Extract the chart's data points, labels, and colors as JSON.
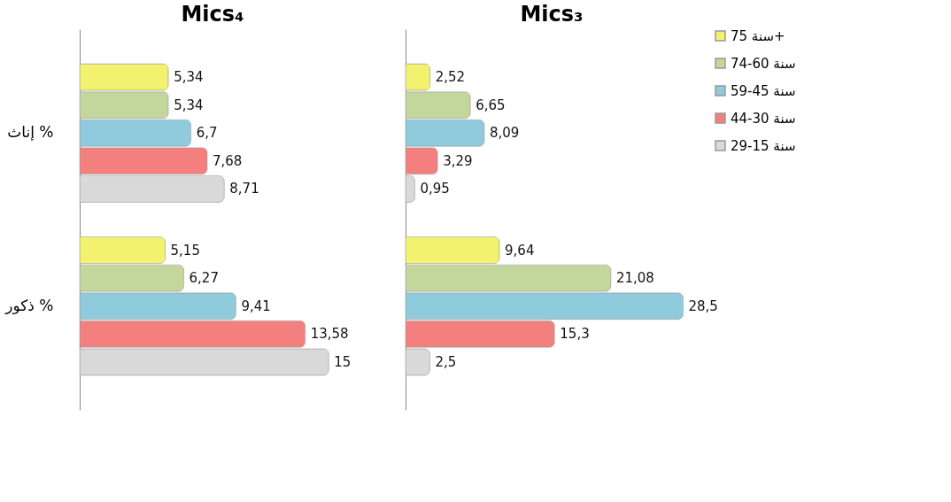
{
  "chart_data": [
    {
      "type": "bar",
      "orientation": "horizontal",
      "title": "Mics₄",
      "categories": [
        "إناث %",
        "ذكور %"
      ],
      "tick_labels": "y",
      "legend": false,
      "grid": false,
      "series": [
        {
          "color": "#f2f26e",
          "values": [
            5.34,
            5.15
          ],
          "value_labels": [
            "5,34",
            "5,15"
          ]
        },
        {
          "color": "#c3d69b",
          "values": [
            5.34,
            6.27
          ],
          "value_labels": [
            "5,34",
            "6,27"
          ]
        },
        {
          "color": "#8fcbdc",
          "values": [
            6.7,
            9.41
          ],
          "value_labels": [
            "6,7",
            "9,41"
          ]
        },
        {
          "color": "#f47f7f",
          "values": [
            7.68,
            13.58
          ],
          "value_labels": [
            "7,68",
            "13,58"
          ]
        },
        {
          "color": "#d9d9d9",
          "values": [
            8.71,
            15
          ],
          "value_labels": [
            "8,71",
            "15"
          ]
        }
      ]
    },
    {
      "type": "bar",
      "orientation": "horizontal",
      "title": "Mics₃",
      "categories": [
        null,
        null
      ],
      "tick_labels": false,
      "legend": "top right",
      "grid": false,
      "series": [
        {
          "name": "75 سنة+",
          "color": "#f2f26e",
          "values": [
            2.52,
            9.64
          ],
          "value_labels": [
            "2,52",
            "9,64"
          ]
        },
        {
          "name": "74-60 سنة",
          "color": "#c3d69b",
          "values": [
            6.65,
            21.08
          ],
          "value_labels": [
            "6,65",
            "21,08"
          ]
        },
        {
          "name": "59-45 سنة",
          "color": "#8fcbdc",
          "values": [
            8.09,
            28.5
          ],
          "value_labels": [
            "8,09",
            "28,5"
          ]
        },
        {
          "name": "44-30 سنة",
          "color": "#f47f7f",
          "values": [
            3.29,
            15.3
          ],
          "value_labels": [
            "3,29",
            "15,3"
          ]
        },
        {
          "name": "29-15 سنة",
          "color": "#d9d9d9",
          "values": [
            0.95,
            2.5
          ],
          "value_labels": [
            "0,95",
            "2,5"
          ]
        }
      ]
    }
  ]
}
